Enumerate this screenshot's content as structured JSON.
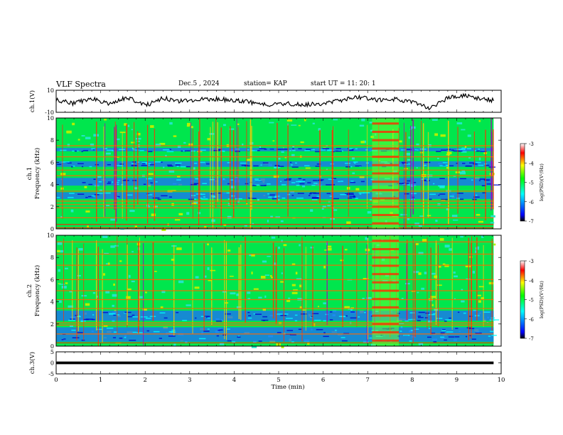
{
  "header": {
    "title": "VLF Spectra",
    "date": "Dec.5 , 2024",
    "station": "station= KAP",
    "start": "start UT =  11: 20: 1"
  },
  "chart_data": [
    {
      "type": "line",
      "panel": "ch1-waveform",
      "ylabel": "ch.1(V)",
      "ylim": [
        -10,
        10
      ],
      "yticks": [
        "10",
        "-10"
      ],
      "xlim": [
        0,
        9.83
      ],
      "x": [
        0,
        0.4,
        0.8,
        1.2,
        1.6,
        2.0,
        2.4,
        2.8,
        3.2,
        3.6,
        4.0,
        4.4,
        4.8,
        5.2,
        5.6,
        6.0,
        6.4,
        6.8,
        7.2,
        7.6,
        8.0,
        8.4,
        8.8,
        9.2,
        9.6,
        9.83
      ],
      "y": [
        1,
        -2,
        3,
        -3,
        4,
        -4,
        3,
        0,
        2,
        2,
        1,
        -1,
        -3,
        -2,
        -3,
        -2,
        1,
        4,
        1,
        2,
        -1,
        -6,
        3,
        5,
        2,
        1
      ],
      "color": "#000000"
    },
    {
      "type": "heatmap",
      "panel": "ch1-spectrogram",
      "ylabel": "ch.1 Frequency (kHz)",
      "ylim": [
        0,
        10
      ],
      "yticks": [
        "0",
        "2",
        "4",
        "6",
        "8",
        "10"
      ],
      "xlim": [
        0,
        9.83
      ],
      "colorbar": {
        "label": "log(PSD)(V²/Hz)",
        "range": [
          -7,
          -3
        ],
        "ticks": [
          "-3",
          "-4",
          "-5",
          "-6",
          "-7"
        ]
      },
      "colormap": [
        "#000000",
        "#0000ff",
        "#00ffff",
        "#00ff00",
        "#ffff00",
        "#ff0000",
        "#ffffff"
      ],
      "horizontal_lines_khz": [
        0.1,
        0.4,
        1.0,
        1.9,
        2.2,
        2.5,
        3.4,
        4.8,
        5.3,
        6.5,
        7.5
      ],
      "blue_bands_khz": [
        [
          2.7,
          3.3
        ],
        [
          3.9,
          4.6
        ],
        [
          5.6,
          6.1
        ],
        [
          7.0,
          7.3
        ]
      ],
      "noise_burst_min": [
        7.1,
        7.7
      ]
    },
    {
      "type": "heatmap",
      "panel": "ch2-spectrogram",
      "ylabel": "ch.2 Frequency (kHz)",
      "ylim": [
        0,
        10
      ],
      "yticks": [
        "0",
        "2",
        "4",
        "6",
        "8",
        "10"
      ],
      "xlim": [
        0,
        9.83
      ],
      "colorbar": {
        "label": "log(PSD)(V²/Hz)",
        "range": [
          -7,
          -3
        ],
        "ticks": [
          "-3",
          "-4",
          "-5",
          "-6",
          "-7"
        ]
      },
      "colormap": [
        "#000000",
        "#0000ff",
        "#00ffff",
        "#00ff00",
        "#ffff00",
        "#ff0000",
        "#ffffff"
      ],
      "horizontal_lines_khz": [
        0.3,
        1.1,
        1.9,
        2.1,
        3.4,
        4.2,
        5.0,
        6.0,
        7.3,
        8.3,
        9.4
      ],
      "blue_bands_khz": [
        [
          0.4,
          1.7
        ],
        [
          2.3,
          3.2
        ]
      ],
      "noise_burst_min": [
        7.1,
        7.7
      ]
    },
    {
      "type": "line",
      "panel": "ch3-waveform",
      "ylabel": "ch.3(V)",
      "ylim": [
        -5,
        5
      ],
      "yticks": [
        "5",
        "0",
        "-5"
      ],
      "xlim": [
        0,
        9.83
      ],
      "x": [
        0,
        9.83
      ],
      "y": [
        0,
        0
      ],
      "color": "#000000"
    }
  ],
  "xaxis": {
    "label": "Time (min)",
    "ticks": [
      "0",
      "1",
      "2",
      "3",
      "4",
      "5",
      "6",
      "7",
      "8",
      "9",
      "10"
    ]
  }
}
